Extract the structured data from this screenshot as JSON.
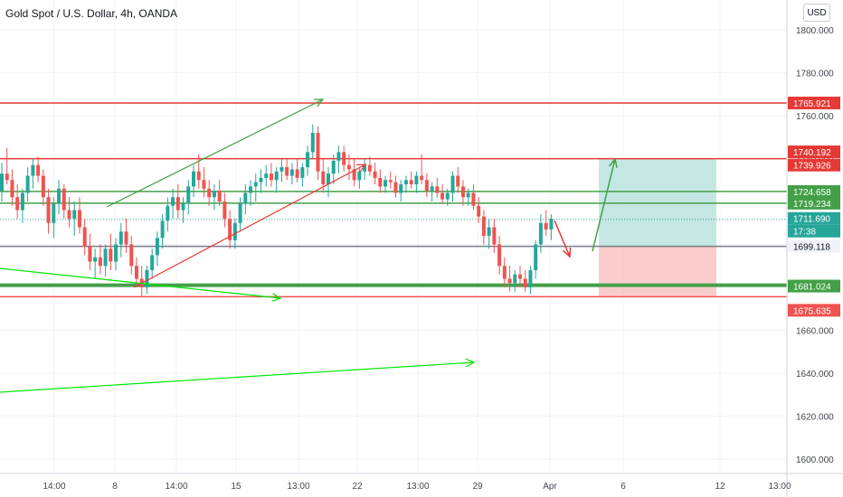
{
  "title": "Gold Spot / U.S. Dollar, 4h, OANDA",
  "currency_button": "USD",
  "colors": {
    "up": "#26a69a",
    "down": "#ef5350",
    "level_red": "#e53935",
    "level_green": "#43a047",
    "bright_green": "#00e600",
    "profit_zone": "#b2dfdb",
    "loss_zone": "#f8bbbb",
    "grid": "#f0f3fa",
    "axis_text": "#434651"
  },
  "chart_data": {
    "type": "candlestick",
    "y_axis": {
      "ticks": [
        1600,
        1620,
        1640,
        1660,
        1680,
        1700,
        1720,
        1740,
        1760,
        1780,
        1800
      ],
      "tick_labels": [
        "1600.000",
        "1620.000",
        "1640.000",
        "1660.000",
        "1680.000",
        "1700.000",
        "1720.000",
        "1740.000",
        "1760.000",
        "1780.000",
        "1800.000"
      ],
      "range": [
        1592,
        1808
      ]
    },
    "x_axis": {
      "tick_labels": [
        "14:00",
        "8",
        "14:00",
        "15",
        "13:00",
        "22",
        "13:00",
        "29",
        "Apr",
        "6",
        "12",
        "13:00"
      ]
    },
    "levels": [
      {
        "label": "1765.921",
        "value": 1765.921,
        "color": "red"
      },
      {
        "label": "1740.192",
        "value": 1740.192,
        "color": "red",
        "line": false
      },
      {
        "label": "1739.926",
        "value": 1739.926,
        "color": "red"
      },
      {
        "label": "1724.658",
        "value": 1724.658,
        "color": "green"
      },
      {
        "label": "1719.234",
        "value": 1719.234,
        "color": "green"
      },
      {
        "label": "1711.690",
        "value": 1711.69,
        "color": "teal"
      },
      {
        "label": "17:38",
        "value": 1711.69,
        "color": "teal",
        "note": "countdown",
        "line": false
      },
      {
        "label": "1699.118",
        "value": 1699.118,
        "color": "grey"
      },
      {
        "label": "1681.024",
        "value": 1681.024,
        "color": "green"
      },
      {
        "label": "1675.635",
        "value": 1675.635,
        "color": "pink"
      }
    ],
    "position": {
      "entry": 1699.118,
      "target": 1739.926,
      "stop": 1675.635
    },
    "candles": [
      [
        1725,
        1738,
        1720,
        1733
      ],
      [
        1733,
        1745,
        1728,
        1730
      ],
      [
        1730,
        1735,
        1718,
        1722
      ],
      [
        1722,
        1728,
        1712,
        1716
      ],
      [
        1716,
        1726,
        1710,
        1724
      ],
      [
        1724,
        1736,
        1720,
        1732
      ],
      [
        1732,
        1740,
        1726,
        1737
      ],
      [
        1737,
        1741,
        1729,
        1732
      ],
      [
        1732,
        1735,
        1718,
        1722
      ],
      [
        1722,
        1726,
        1705,
        1710
      ],
      [
        1710,
        1722,
        1703,
        1719
      ],
      [
        1719,
        1730,
        1714,
        1726
      ],
      [
        1726,
        1728,
        1712,
        1716
      ],
      [
        1716,
        1722,
        1708,
        1712
      ],
      [
        1712,
        1720,
        1704,
        1716
      ],
      [
        1716,
        1722,
        1705,
        1708
      ],
      [
        1708,
        1712,
        1695,
        1699
      ],
      [
        1699,
        1705,
        1688,
        1692
      ],
      [
        1692,
        1698,
        1684,
        1694
      ],
      [
        1694,
        1700,
        1686,
        1690
      ],
      [
        1690,
        1700,
        1685,
        1698
      ],
      [
        1698,
        1705,
        1688,
        1692
      ],
      [
        1692,
        1703,
        1688,
        1700
      ],
      [
        1700,
        1710,
        1694,
        1706
      ],
      [
        1706,
        1712,
        1696,
        1700
      ],
      [
        1700,
        1704,
        1686,
        1690
      ],
      [
        1690,
        1694,
        1680,
        1684
      ],
      [
        1684,
        1690,
        1676,
        1680
      ],
      [
        1680,
        1690,
        1677,
        1688
      ],
      [
        1688,
        1698,
        1684,
        1695
      ],
      [
        1695,
        1706,
        1690,
        1703
      ],
      [
        1703,
        1714,
        1698,
        1711
      ],
      [
        1711,
        1722,
        1706,
        1718
      ],
      [
        1718,
        1726,
        1712,
        1722
      ],
      [
        1722,
        1728,
        1712,
        1716
      ],
      [
        1716,
        1722,
        1710,
        1719
      ],
      [
        1719,
        1730,
        1714,
        1727
      ],
      [
        1727,
        1737,
        1722,
        1734
      ],
      [
        1734,
        1742,
        1726,
        1730
      ],
      [
        1730,
        1736,
        1722,
        1726
      ],
      [
        1726,
        1730,
        1718,
        1722
      ],
      [
        1722,
        1728,
        1716,
        1725
      ],
      [
        1725,
        1730,
        1718,
        1720
      ],
      [
        1720,
        1724,
        1708,
        1712
      ],
      [
        1712,
        1716,
        1698,
        1702
      ],
      [
        1702,
        1712,
        1698,
        1710
      ],
      [
        1710,
        1722,
        1706,
        1719
      ],
      [
        1719,
        1728,
        1714,
        1724
      ],
      [
        1724,
        1730,
        1718,
        1727
      ],
      [
        1727,
        1733,
        1720,
        1729
      ],
      [
        1729,
        1735,
        1724,
        1731
      ],
      [
        1731,
        1737,
        1727,
        1733
      ],
      [
        1733,
        1738,
        1727,
        1730
      ],
      [
        1730,
        1736,
        1724,
        1734
      ],
      [
        1734,
        1740,
        1729,
        1736
      ],
      [
        1736,
        1740,
        1730,
        1732
      ],
      [
        1732,
        1738,
        1728,
        1735
      ],
      [
        1735,
        1740,
        1729,
        1731
      ],
      [
        1731,
        1738,
        1727,
        1736
      ],
      [
        1736,
        1746,
        1732,
        1743
      ],
      [
        1743,
        1756,
        1740,
        1752
      ],
      [
        1752,
        1755,
        1730,
        1734
      ],
      [
        1734,
        1740,
        1724,
        1728
      ],
      [
        1728,
        1736,
        1722,
        1733
      ],
      [
        1733,
        1742,
        1728,
        1739
      ],
      [
        1739,
        1746,
        1733,
        1743
      ],
      [
        1743,
        1746,
        1734,
        1737
      ],
      [
        1737,
        1742,
        1730,
        1735
      ],
      [
        1735,
        1740,
        1727,
        1730
      ],
      [
        1730,
        1736,
        1726,
        1734
      ],
      [
        1734,
        1740,
        1730,
        1737
      ],
      [
        1737,
        1741,
        1732,
        1734
      ],
      [
        1734,
        1738,
        1728,
        1731
      ],
      [
        1731,
        1735,
        1724,
        1727
      ],
      [
        1727,
        1732,
        1724,
        1730
      ],
      [
        1730,
        1734,
        1726,
        1729
      ],
      [
        1729,
        1732,
        1722,
        1724
      ],
      [
        1724,
        1730,
        1720,
        1728
      ],
      [
        1728,
        1732,
        1724,
        1730
      ],
      [
        1730,
        1734,
        1726,
        1728
      ],
      [
        1728,
        1734,
        1724,
        1732
      ],
      [
        1732,
        1742,
        1728,
        1730
      ],
      [
        1730,
        1733,
        1722,
        1725
      ],
      [
        1725,
        1729,
        1720,
        1727
      ],
      [
        1727,
        1731,
        1722,
        1724
      ],
      [
        1724,
        1728,
        1719,
        1721
      ],
      [
        1721,
        1726,
        1718,
        1724
      ],
      [
        1724,
        1734,
        1720,
        1732
      ],
      [
        1732,
        1736,
        1724,
        1727
      ],
      [
        1727,
        1730,
        1718,
        1722
      ],
      [
        1722,
        1726,
        1718,
        1724
      ],
      [
        1724,
        1728,
        1716,
        1718
      ],
      [
        1718,
        1722,
        1710,
        1713
      ],
      [
        1713,
        1716,
        1700,
        1704
      ],
      [
        1704,
        1712,
        1698,
        1708
      ],
      [
        1708,
        1712,
        1696,
        1700
      ],
      [
        1700,
        1704,
        1686,
        1690
      ],
      [
        1690,
        1694,
        1680,
        1684
      ],
      [
        1684,
        1690,
        1678,
        1682
      ],
      [
        1682,
        1688,
        1678,
        1686
      ],
      [
        1686,
        1690,
        1680,
        1684
      ],
      [
        1684,
        1688,
        1678,
        1680
      ],
      [
        1680,
        1690,
        1677,
        1688
      ],
      [
        1688,
        1702,
        1684,
        1700
      ],
      [
        1700,
        1714,
        1696,
        1710
      ],
      [
        1710,
        1716,
        1704,
        1707
      ],
      [
        1707,
        1714,
        1702,
        1712
      ]
    ]
  }
}
